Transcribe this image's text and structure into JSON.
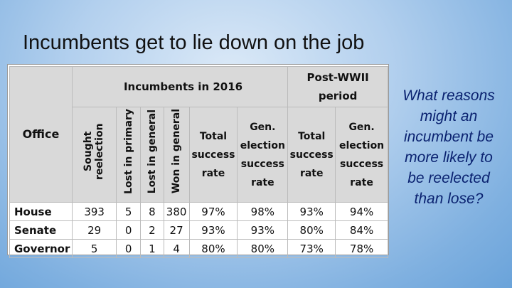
{
  "title": "Incumbents get to lie down on the job",
  "table": {
    "group_headers": [
      "Incumbents in 2016",
      "Post-WWII period"
    ],
    "columns": [
      "Office",
      "Sought reelection",
      "Lost in primary",
      "Lost in general",
      "Won in general",
      "Total success rate",
      "Gen. election success rate",
      "Total success rate",
      "Gen. election success rate"
    ],
    "rows": [
      [
        "House",
        "393",
        "5",
        "8",
        "380",
        "97%",
        "98%",
        "93%",
        "94%"
      ],
      [
        "Senate",
        "29",
        "0",
        "2",
        "27",
        "93%",
        "93%",
        "80%",
        "84%"
      ],
      [
        "Governor",
        "5",
        "0",
        "1",
        "4",
        "80%",
        "80%",
        "73%",
        "78%"
      ]
    ]
  },
  "question": "What reasons might an incumbent be more likely to be reelected than lose?"
}
